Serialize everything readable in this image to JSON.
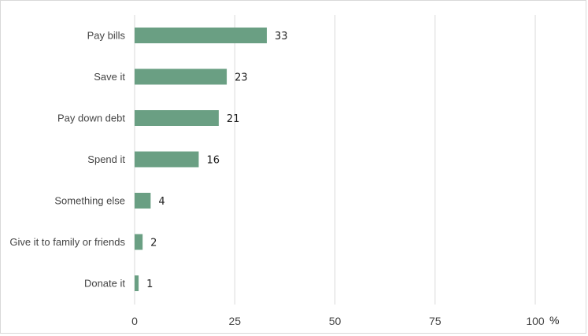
{
  "chart_data": {
    "type": "bar",
    "orientation": "horizontal",
    "title": "",
    "xlabel": "",
    "ylabel": "",
    "unit": "%",
    "categories": [
      "Pay bills",
      "Save it",
      "Pay down debt",
      "Spend it",
      "Something else",
      "Give it to family or friends",
      "Donate it"
    ],
    "values": [
      33,
      23,
      21,
      16,
      4,
      2,
      1
    ],
    "xlim": [
      0,
      100
    ],
    "xticks": [
      0,
      25,
      50,
      75,
      100
    ],
    "grid": true,
    "legend": "none",
    "bar_color": "#6a9f83",
    "grid_color": "#d9d9d9"
  }
}
